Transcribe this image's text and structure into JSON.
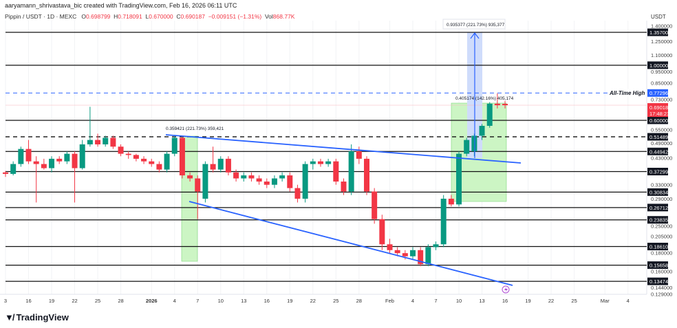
{
  "header": {
    "created": "aaryamann_shrivastava_bic created with TradingView.com, Feb 16, 2026 06:11 UTC",
    "symbol": "Pippin / USDT · 1D · MEXC",
    "o_label": "O",
    "o": "0.698799",
    "h_label": "H",
    "h": "0.718091",
    "l_label": "L",
    "l": "0.670000",
    "c_label": "C",
    "c": "0.690187",
    "change": "−0.009151 (−1.31%)",
    "vol_label": "Vol",
    "vol": "868.77K"
  },
  "currency": "USDT",
  "colors": {
    "up": "#089981",
    "down": "#f23645",
    "line": "#2962ff",
    "zone": "#ccf5c4"
  },
  "price_ticks": [
    "1.400000",
    "1.250000",
    "1.100000",
    "0.950000",
    "0.850000",
    "0.730000",
    "0.550000",
    "0.490000",
    "0.430000",
    "0.330000",
    "0.290000",
    "0.250000",
    "0.205000",
    "0.180000",
    "0.160000",
    "0.144000",
    "0.129000"
  ],
  "levels": [
    {
      "price": 1.357,
      "label": "1.357000",
      "style": "solid"
    },
    {
      "price": 1.0,
      "label": "1.000000",
      "style": "solid"
    },
    {
      "price": 0.6,
      "label": "0.600000",
      "style": "solid"
    },
    {
      "price": 0.514891,
      "label": "0.514891",
      "style": "dashed"
    },
    {
      "price": 0.449429,
      "label": "0.449429",
      "style": "solid"
    },
    {
      "price": 0.372994,
      "label": "0.372994",
      "style": "solid"
    },
    {
      "price": 0.308342,
      "label": "0.308342",
      "style": "solid"
    },
    {
      "price": 0.267124,
      "label": "0.267124",
      "style": "solid"
    },
    {
      "price": 0.238353,
      "label": "0.238353",
      "style": "solid"
    },
    {
      "price": 0.186108,
      "label": "0.186108",
      "style": "solid"
    },
    {
      "price": 0.156586,
      "label": "0.156586",
      "style": "solid"
    },
    {
      "price": 0.134743,
      "label": "0.134743",
      "style": "solid"
    }
  ],
  "ath": {
    "price": 0.772962,
    "label": "0.772962",
    "text": "All-Time High"
  },
  "last": {
    "price": 0.690187,
    "label": "0.690187",
    "countdown": "17:48:21"
  },
  "annotations": {
    "measure1": "0.359421 (221.73%) 359,421",
    "measure2": "0.405174 (142.16%) 405,174",
    "measure3": "0.935377 (221.73%) 935,377"
  },
  "x_labels": [
    [
      "3",
      0
    ],
    [
      "16",
      3
    ],
    [
      "19",
      6
    ],
    [
      "22",
      9
    ],
    [
      "25",
      12
    ],
    [
      "28",
      15
    ],
    [
      "2026",
      19
    ],
    [
      "4",
      22
    ],
    [
      "7",
      25
    ],
    [
      "10",
      28
    ],
    [
      "13",
      31
    ],
    [
      "16",
      34
    ],
    [
      "19",
      37
    ],
    [
      "22",
      40
    ],
    [
      "25",
      43
    ],
    [
      "28",
      46
    ],
    [
      "Feb",
      50
    ],
    [
      "4",
      53
    ],
    [
      "7",
      56
    ],
    [
      "10",
      59
    ],
    [
      "13",
      62
    ],
    [
      "16",
      65
    ],
    [
      "19",
      68
    ],
    [
      "22",
      71
    ],
    [
      "25",
      74
    ],
    [
      "Mar",
      78
    ],
    [
      "4",
      81
    ]
  ],
  "candles": [
    [
      0.37,
      0.375,
      0.355,
      0.365
    ],
    [
      0.365,
      0.41,
      0.36,
      0.4
    ],
    [
      0.4,
      0.47,
      0.39,
      0.46
    ],
    [
      0.46,
      0.5,
      0.4,
      0.41
    ],
    [
      0.41,
      0.43,
      0.28,
      0.4
    ],
    [
      0.4,
      0.42,
      0.38,
      0.385
    ],
    [
      0.385,
      0.43,
      0.37,
      0.42
    ],
    [
      0.42,
      0.43,
      0.4,
      0.41
    ],
    [
      0.41,
      0.45,
      0.4,
      0.44
    ],
    [
      0.44,
      0.45,
      0.28,
      0.385
    ],
    [
      0.385,
      0.5,
      0.38,
      0.48
    ],
    [
      0.48,
      0.68,
      0.47,
      0.5
    ],
    [
      0.5,
      0.53,
      0.47,
      0.48
    ],
    [
      0.48,
      0.52,
      0.47,
      0.51
    ],
    [
      0.51,
      0.52,
      0.46,
      0.47
    ],
    [
      0.47,
      0.48,
      0.43,
      0.44
    ],
    [
      0.44,
      0.45,
      0.42,
      0.435
    ],
    [
      0.435,
      0.44,
      0.41,
      0.42
    ],
    [
      0.42,
      0.43,
      0.4,
      0.41
    ],
    [
      0.41,
      0.42,
      0.39,
      0.4
    ],
    [
      0.4,
      0.41,
      0.37,
      0.38
    ],
    [
      0.38,
      0.45,
      0.37,
      0.44
    ],
    [
      0.44,
      0.52,
      0.43,
      0.51
    ],
    [
      0.51,
      0.52,
      0.35,
      0.36
    ],
    [
      0.36,
      0.37,
      0.34,
      0.35
    ],
    [
      0.35,
      0.36,
      0.24,
      0.31
    ],
    [
      0.29,
      0.41,
      0.28,
      0.4
    ],
    [
      0.4,
      0.47,
      0.37,
      0.38
    ],
    [
      0.38,
      0.43,
      0.37,
      0.42
    ],
    [
      0.42,
      0.43,
      0.36,
      0.37
    ],
    [
      0.37,
      0.38,
      0.34,
      0.35
    ],
    [
      0.35,
      0.37,
      0.34,
      0.36
    ],
    [
      0.36,
      0.37,
      0.34,
      0.35
    ],
    [
      0.35,
      0.36,
      0.33,
      0.34
    ],
    [
      0.34,
      0.35,
      0.32,
      0.33
    ],
    [
      0.33,
      0.36,
      0.32,
      0.35
    ],
    [
      0.35,
      0.37,
      0.34,
      0.36
    ],
    [
      0.36,
      0.37,
      0.31,
      0.32
    ],
    [
      0.32,
      0.33,
      0.28,
      0.29
    ],
    [
      0.29,
      0.41,
      0.28,
      0.4
    ],
    [
      0.4,
      0.42,
      0.38,
      0.41
    ],
    [
      0.41,
      0.42,
      0.39,
      0.4
    ],
    [
      0.4,
      0.42,
      0.39,
      0.41
    ],
    [
      0.41,
      0.42,
      0.33,
      0.34
    ],
    [
      0.34,
      0.35,
      0.3,
      0.31
    ],
    [
      0.31,
      0.48,
      0.3,
      0.45
    ],
    [
      0.45,
      0.47,
      0.4,
      0.42
    ],
    [
      0.42,
      0.43,
      0.3,
      0.31
    ],
    [
      0.31,
      0.32,
      0.23,
      0.24
    ],
    [
      0.24,
      0.25,
      0.18,
      0.19
    ],
    [
      0.19,
      0.2,
      0.175,
      0.18
    ],
    [
      0.18,
      0.185,
      0.17,
      0.175
    ],
    [
      0.175,
      0.18,
      0.165,
      0.17
    ],
    [
      0.17,
      0.185,
      0.165,
      0.18
    ],
    [
      0.18,
      0.185,
      0.155,
      0.158
    ],
    [
      0.158,
      0.19,
      0.155,
      0.185
    ],
    [
      0.185,
      0.195,
      0.18,
      0.19
    ],
    [
      0.19,
      0.3,
      0.185,
      0.29
    ],
    [
      0.29,
      0.3,
      0.27,
      0.275
    ],
    [
      0.275,
      0.45,
      0.27,
      0.44
    ],
    [
      0.44,
      0.51,
      0.43,
      0.5
    ],
    [
      0.45,
      0.53,
      0.43,
      0.52
    ],
    [
      0.52,
      0.58,
      0.5,
      0.57
    ],
    [
      0.57,
      0.71,
      0.56,
      0.7
    ],
    [
      0.7,
      0.77,
      0.67,
      0.69
    ],
    [
      0.699,
      0.718,
      0.67,
      0.69
    ]
  ]
}
